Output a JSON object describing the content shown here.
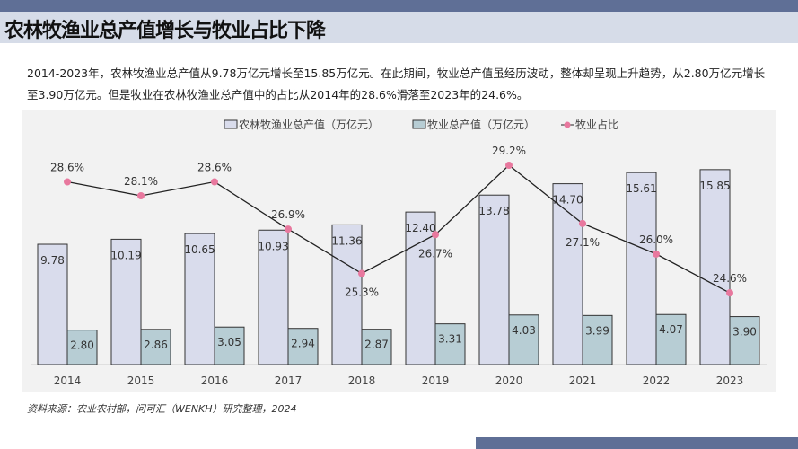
{
  "header": {
    "title": "农林牧渔业总产值增长与牧业占比下降"
  },
  "description": "2014-2023年，农林牧渔业总产值从9.78万亿元增长至15.85万亿元。在此期间，牧业总产值虽经历波动，整体却呈现上升趋势，从2.80万亿元增长至3.90万亿元。但是牧业在农林牧渔业总产值中的占比从2014年的28.6%滑落至2023年的24.6%。",
  "source": "资料来源：农业农村部，问可汇（WENKH）研究整理，2024",
  "colors": {
    "bar1": "#d9dcec",
    "bar2": "#b7cdd4",
    "line": "#222222",
    "marker": "#e8789e",
    "band": "#5f6f96"
  },
  "chart_data": {
    "type": "bar+line",
    "categories": [
      "2014",
      "2015",
      "2016",
      "2017",
      "2018",
      "2019",
      "2020",
      "2021",
      "2022",
      "2023"
    ],
    "series": [
      {
        "name": "农林牧渔业总产值（万亿元）",
        "type": "bar",
        "values": [
          9.78,
          10.19,
          10.65,
          10.93,
          11.36,
          12.4,
          13.78,
          14.7,
          15.61,
          15.85
        ],
        "labels": [
          "9.78",
          "10.19",
          "10.65",
          "10.93",
          "11.36",
          "12.40",
          "13.78",
          "14.70",
          "15.61",
          "15.85"
        ]
      },
      {
        "name": "牧业总产值（万亿元）",
        "type": "bar",
        "values": [
          2.8,
          2.86,
          3.05,
          2.94,
          2.87,
          3.31,
          4.03,
          3.99,
          4.07,
          3.9
        ],
        "labels": [
          "2.80",
          "2.86",
          "3.05",
          "2.94",
          "2.87",
          "3.31",
          "4.03",
          "3.99",
          "4.07",
          "3.90"
        ]
      },
      {
        "name": "牧业占比",
        "type": "line",
        "values": [
          28.6,
          28.1,
          28.6,
          26.9,
          25.3,
          26.7,
          29.2,
          27.1,
          26.0,
          24.6
        ],
        "labels": [
          "28.6%",
          "28.1%",
          "28.6%",
          "26.9%",
          "25.3%",
          "26.7%",
          "29.2%",
          "27.1%",
          "26.0%",
          "24.6%"
        ]
      }
    ],
    "legend": "top",
    "grid": false
  }
}
